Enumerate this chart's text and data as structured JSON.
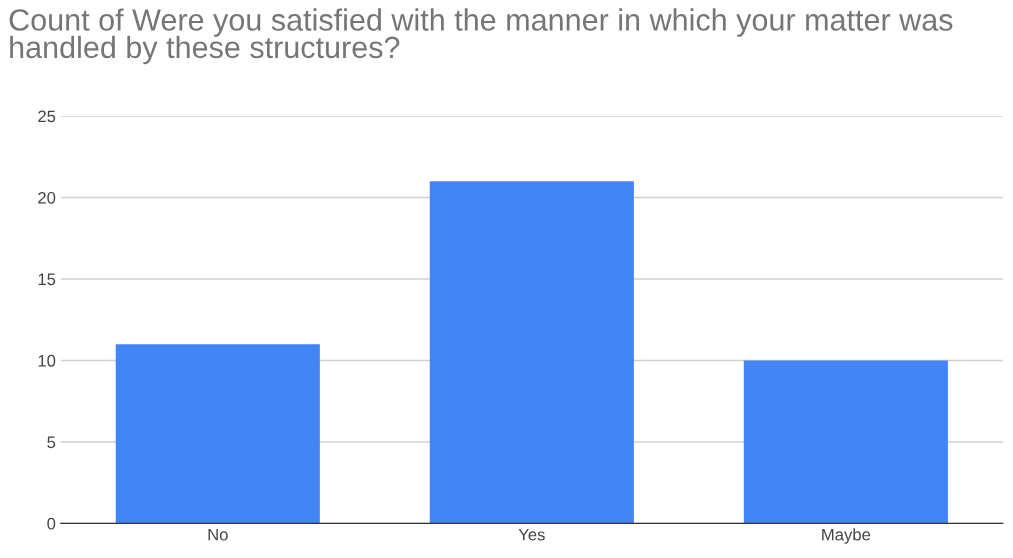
{
  "chart_data": {
    "type": "bar",
    "title": "Count of Were you satisfied with the manner in which your matter was handled by these structures?",
    "categories": [
      "No",
      "Yes",
      "Maybe"
    ],
    "values": [
      11,
      21,
      10
    ],
    "color": "#4285f4",
    "ylim": [
      0,
      25
    ],
    "yticks": [
      0,
      5,
      10,
      15,
      20,
      25
    ],
    "grid": "y"
  }
}
